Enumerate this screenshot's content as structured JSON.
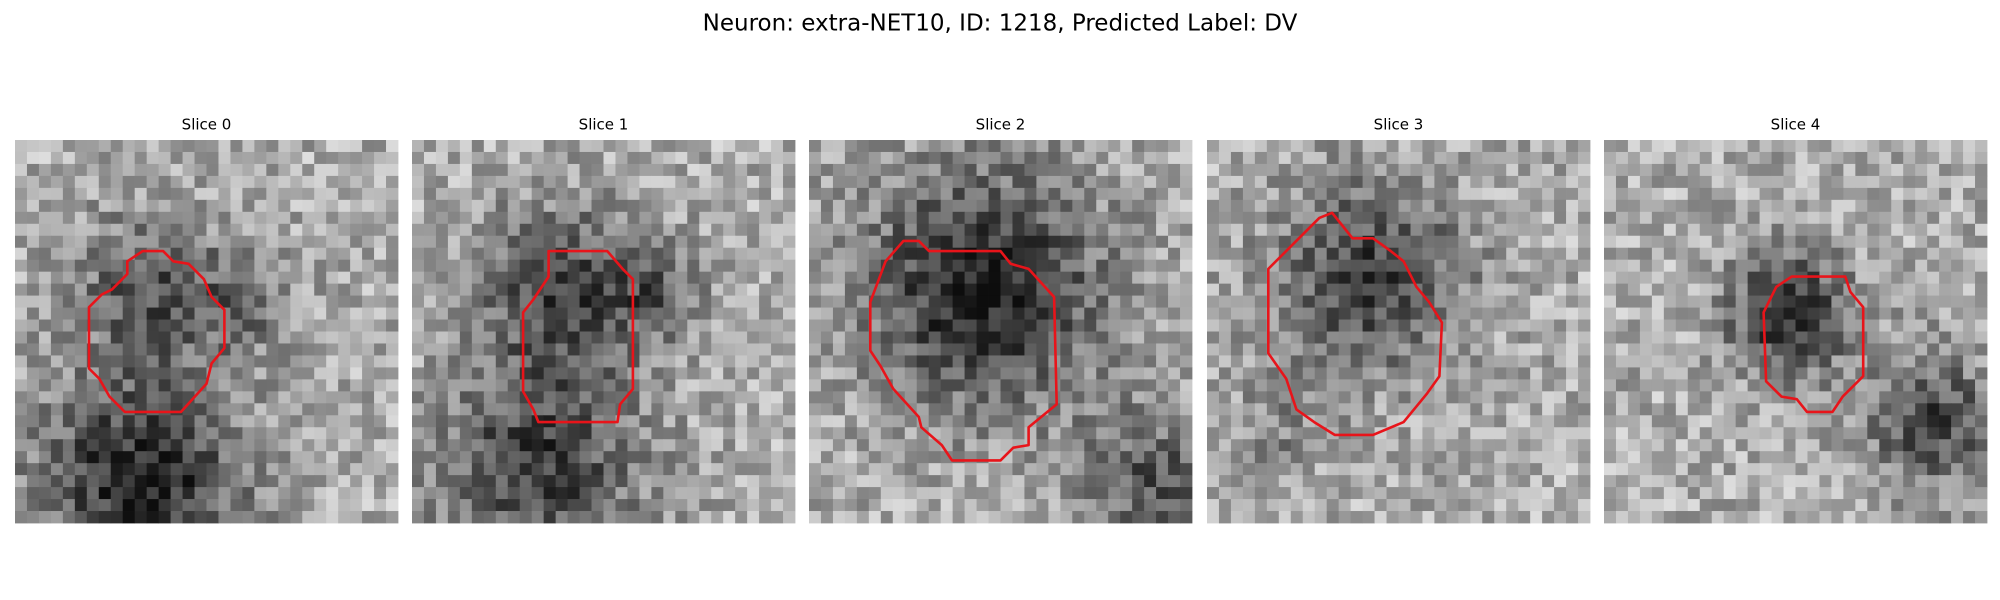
{
  "title": "Neuron: extra-NET10, ID: 1218, Predicted Label: DV",
  "panels": [
    {
      "title": "Slice 0"
    },
    {
      "title": "Slice 1"
    },
    {
      "title": "Slice 2"
    },
    {
      "title": "Slice 3"
    },
    {
      "title": "Slice 4"
    }
  ]
}
